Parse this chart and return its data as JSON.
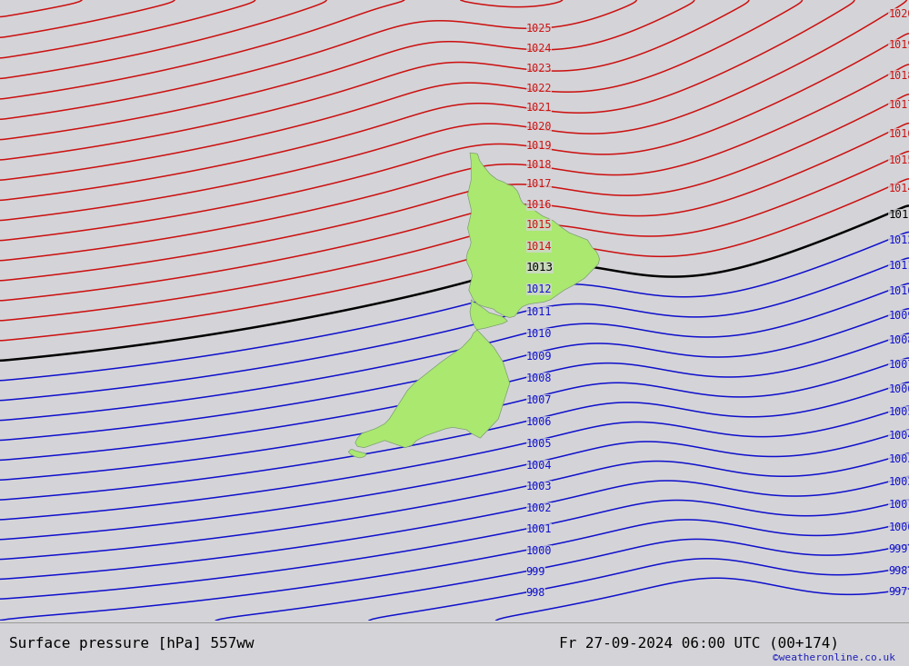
{
  "title_left": "Surface pressure [hPa] 557ww",
  "title_right": "Fr 27-09-2024 06:00 UTC (00+174)",
  "credit": "©weatheronline.co.uk",
  "bg_color": "#d4d4d8",
  "land_color": "#aae870",
  "land_edge_color": "#7a9a70",
  "isobar_blue": "#1010cc",
  "isobar_red": "#cc1010",
  "isobar_black": "#000000",
  "title_font_size": 11.5,
  "label_font_size": 8.5,
  "credit_font_size": 8,
  "lon_min": 152.0,
  "lon_max": 192.0,
  "lat_min": -54.0,
  "lat_max": -28.0
}
